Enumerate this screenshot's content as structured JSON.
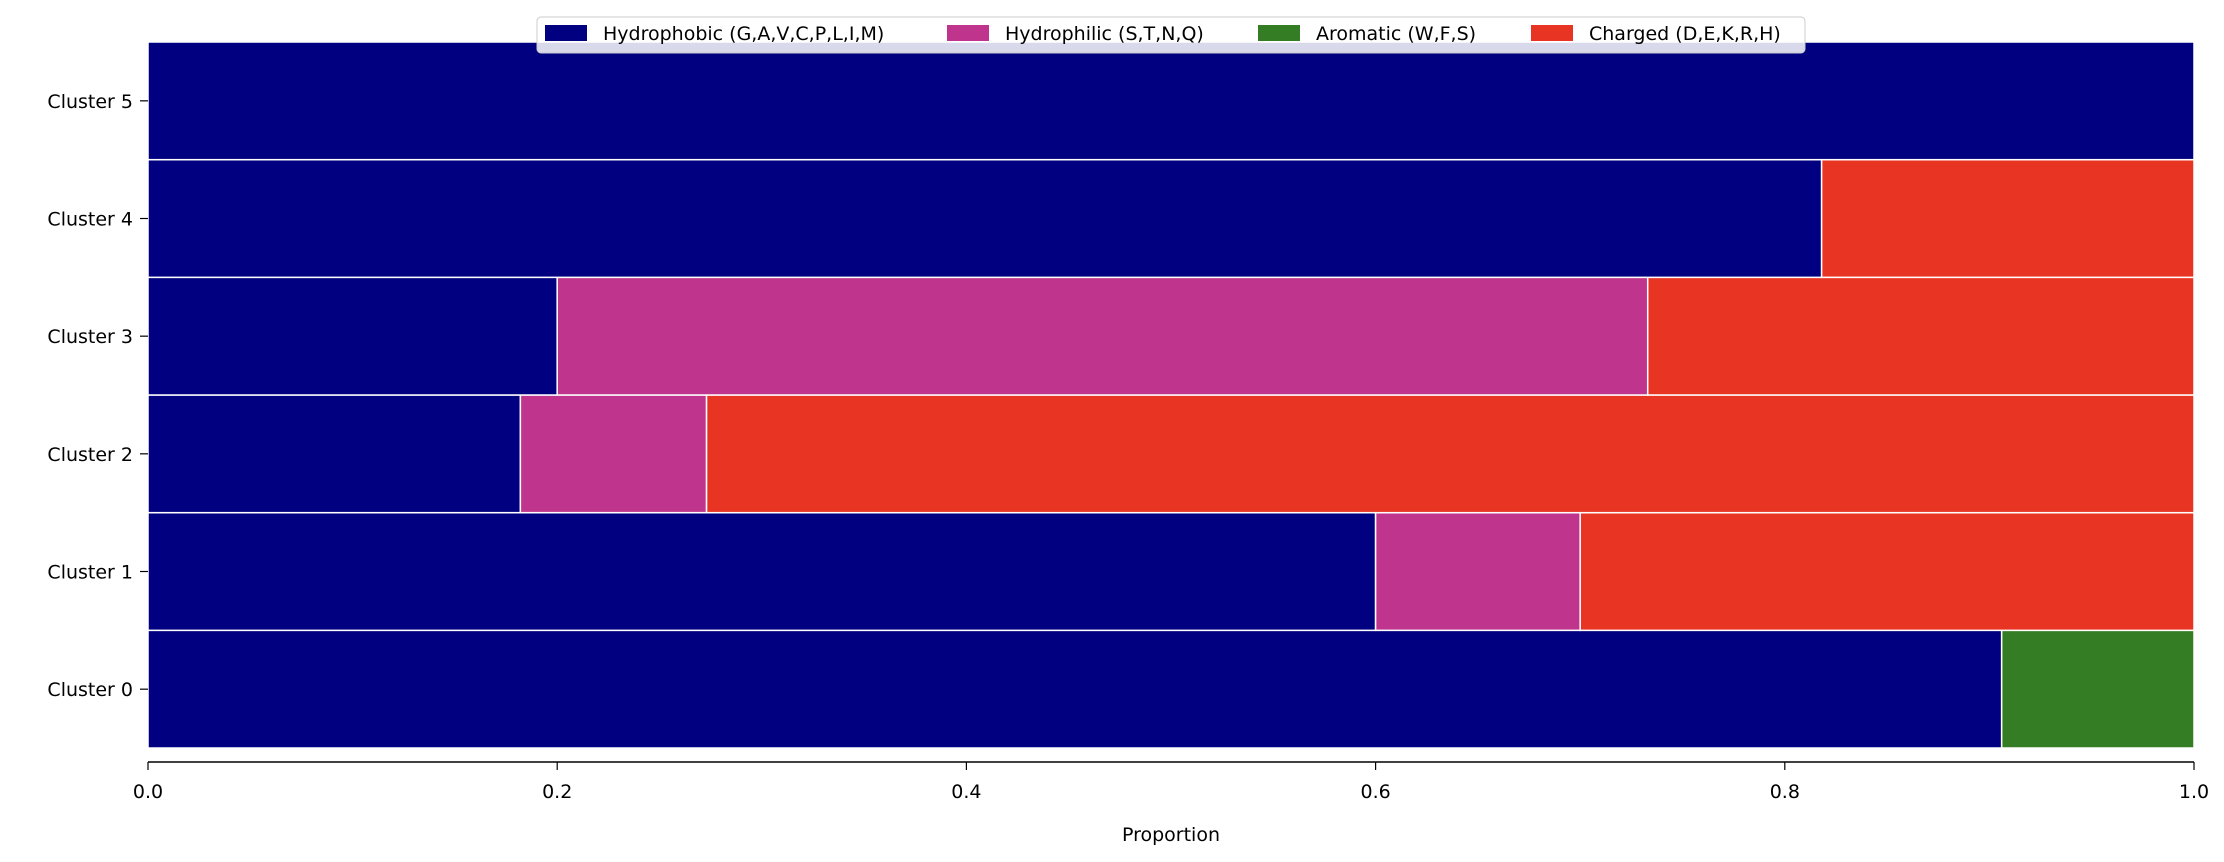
{
  "chart_data": {
    "type": "bar",
    "orientation": "horizontal",
    "stacked": true,
    "categories": [
      "Cluster 0",
      "Cluster 1",
      "Cluster 2",
      "Cluster 3",
      "Cluster 4",
      "Cluster 5"
    ],
    "series": [
      {
        "name": "Hydrophobic (G,A,V,C,P,L,I,M)",
        "color": "#000080",
        "values": [
          0.906,
          0.6,
          0.182,
          0.2,
          0.818,
          1.0
        ]
      },
      {
        "name": "Hydrophilic (S,T,N,Q)",
        "color": "#bf358e",
        "values": [
          0.0,
          0.1,
          0.091,
          0.533,
          0.0,
          0.0
        ]
      },
      {
        "name": "Aromatic (W,F,S)",
        "color": "#357d24",
        "values": [
          0.094,
          0.0,
          0.0,
          0.0,
          0.0,
          0.0
        ]
      },
      {
        "name": "Charged (D,E,K,R,H)",
        "color": "#e83423",
        "values": [
          0.0,
          0.3,
          0.727,
          0.267,
          0.182,
          0.0
        ]
      }
    ],
    "xlabel": "Proportion",
    "ylabel": "",
    "xlim": [
      0,
      1
    ],
    "xticks": [
      "0.0",
      "0.2",
      "0.4",
      "0.6",
      "0.8",
      "1.0"
    ],
    "grid": false,
    "legend_position": "top-center"
  }
}
